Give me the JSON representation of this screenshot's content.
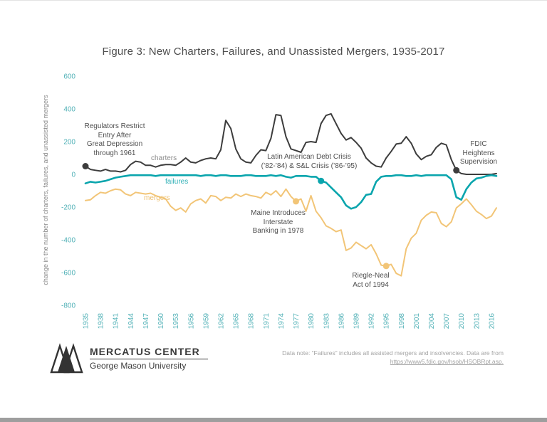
{
  "title": "Figure 3: New Charters, Failures, and Unassisted Mergers, 1935-2017",
  "chart_data": {
    "type": "line",
    "title": "Figure 3: New Charters, Failures, and Unassisted Mergers, 1935-2017",
    "ylabel": "change in the number of charters, failures, and unassisted mergers",
    "xlabel": "",
    "ylim": [
      -800,
      600
    ],
    "grid": false,
    "legend_position": "inline-labels",
    "yticks": [
      600,
      400,
      200,
      0,
      -200,
      -400,
      -600,
      -800
    ],
    "xticks": [
      1935,
      1938,
      1941,
      1944,
      1947,
      1950,
      1953,
      1956,
      1959,
      1962,
      1965,
      1968,
      1971,
      1974,
      1977,
      1980,
      1983,
      1986,
      1989,
      1992,
      1995,
      1998,
      2001,
      2004,
      2007,
      2010,
      2013,
      2016
    ],
    "x": [
      1935,
      1936,
      1937,
      1938,
      1939,
      1940,
      1941,
      1942,
      1943,
      1944,
      1945,
      1946,
      1947,
      1948,
      1949,
      1950,
      1951,
      1952,
      1953,
      1954,
      1955,
      1956,
      1957,
      1958,
      1959,
      1960,
      1961,
      1962,
      1963,
      1964,
      1965,
      1966,
      1967,
      1968,
      1969,
      1970,
      1971,
      1972,
      1973,
      1974,
      1975,
      1976,
      1977,
      1978,
      1979,
      1980,
      1981,
      1982,
      1983,
      1984,
      1985,
      1986,
      1987,
      1988,
      1989,
      1990,
      1991,
      1992,
      1993,
      1994,
      1995,
      1996,
      1997,
      1998,
      1999,
      2000,
      2001,
      2002,
      2003,
      2004,
      2005,
      2006,
      2007,
      2008,
      2009,
      2010,
      2011,
      2012,
      2013,
      2014,
      2015,
      2016,
      2017
    ],
    "series": [
      {
        "name": "charters",
        "color": "#3d3d3d",
        "width": 2,
        "values": [
          50,
          30,
          25,
          20,
          30,
          20,
          20,
          15,
          25,
          60,
          80,
          75,
          55,
          55,
          45,
          55,
          60,
          60,
          55,
          75,
          100,
          75,
          70,
          85,
          95,
          100,
          95,
          150,
          330,
          280,
          155,
          95,
          75,
          70,
          115,
          150,
          145,
          220,
          365,
          360,
          230,
          155,
          145,
          135,
          195,
          200,
          195,
          310,
          360,
          370,
          310,
          250,
          210,
          225,
          195,
          160,
          100,
          70,
          50,
          45,
          100,
          140,
          185,
          190,
          230,
          190,
          125,
          90,
          110,
          120,
          165,
          190,
          180,
          90,
          25,
          5,
          0,
          0,
          0,
          0,
          0,
          0,
          5
        ]
      },
      {
        "name": "failures",
        "color": "#0aa5ad",
        "width": 2.6,
        "values": [
          -55,
          -45,
          -50,
          -45,
          -40,
          -30,
          -20,
          -15,
          -10,
          -5,
          -5,
          -5,
          -5,
          -5,
          -10,
          -5,
          -5,
          -5,
          -5,
          -5,
          -5,
          -5,
          -5,
          -10,
          -5,
          -5,
          -10,
          -5,
          -5,
          -10,
          -10,
          -10,
          -5,
          -5,
          -10,
          -10,
          -10,
          -5,
          -10,
          -5,
          -15,
          -20,
          -10,
          -10,
          -10,
          -15,
          -15,
          -40,
          -50,
          -80,
          -110,
          -140,
          -190,
          -210,
          -200,
          -170,
          -125,
          -120,
          -45,
          -15,
          -10,
          -10,
          -5,
          -5,
          -10,
          -10,
          -5,
          -10,
          -5,
          -5,
          -5,
          -5,
          -5,
          -30,
          -140,
          -155,
          -90,
          -50,
          -25,
          -20,
          -10,
          -5,
          -10
        ]
      },
      {
        "name": "mergers",
        "color": "#f2c577",
        "width": 2,
        "values": [
          -160,
          -155,
          -130,
          -110,
          -115,
          -100,
          -90,
          -95,
          -120,
          -130,
          -110,
          -115,
          -120,
          -115,
          -130,
          -140,
          -150,
          -195,
          -220,
          -205,
          -230,
          -180,
          -160,
          -150,
          -175,
          -130,
          -135,
          -160,
          -140,
          -145,
          -120,
          -135,
          -120,
          -130,
          -135,
          -145,
          -110,
          -125,
          -100,
          -135,
          -90,
          -135,
          -165,
          -150,
          -225,
          -130,
          -225,
          -265,
          -315,
          -330,
          -350,
          -340,
          -465,
          -450,
          -415,
          -435,
          -455,
          -430,
          -485,
          -555,
          -560,
          -550,
          -605,
          -620,
          -455,
          -390,
          -360,
          -280,
          -250,
          -230,
          -235,
          -300,
          -320,
          -290,
          -205,
          -180,
          -150,
          -185,
          -225,
          -245,
          -270,
          -255,
          -205
        ]
      }
    ],
    "markers": [
      {
        "series": "charters",
        "year": 1935
      },
      {
        "series": "failures",
        "year": 1982
      },
      {
        "series": "mergers",
        "year": 1977
      },
      {
        "series": "mergers",
        "year": 1995
      },
      {
        "series": "charters",
        "year": 2009
      }
    ],
    "annotations": {
      "regulators": "Regulators Restrict\nEntry After\nGreat Depression\nthrough 1961",
      "latin_crisis": "Latin American Debt Crisis\n(’82-’84) & S&L Crisis (’86-’95)",
      "maine": "Maine Introduces\nInterstate\nBanking in 1978",
      "riegle": "Riegle-Neal\nAct of 1994",
      "fdic": "FDIC\nHeightens\nSupervision"
    },
    "series_inline_labels": {
      "charters": "charters",
      "failures": "failures",
      "mergers": "mergers"
    },
    "tick_color": "#4fb0b6"
  },
  "footer": {
    "logo_title": "MERCATUS CENTER",
    "logo_subtitle": "George Mason University",
    "note_text": "Data note: “Failures” includes all assisted mergers and insolvencies. Data are from",
    "note_link": "https://www5.fdic.gov/hsob/HSOBRpt.asp."
  }
}
